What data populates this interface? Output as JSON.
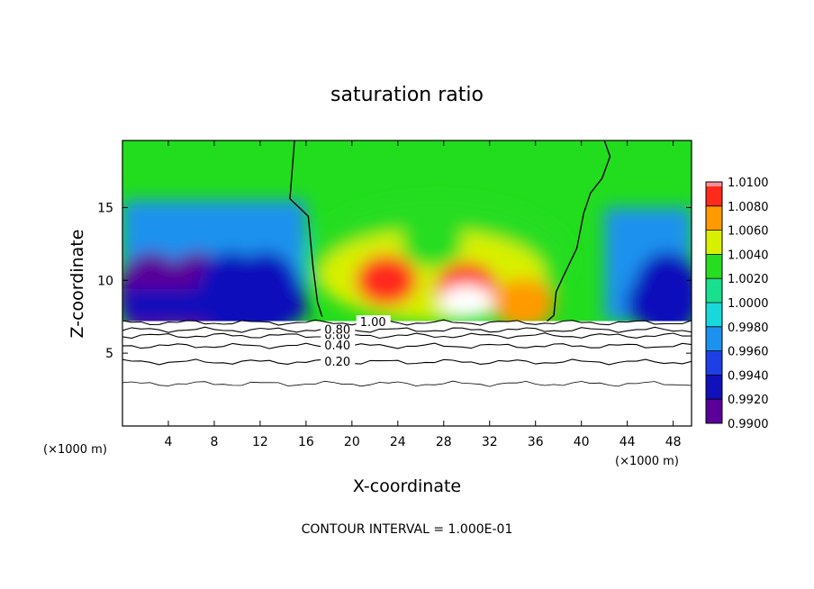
{
  "chart_data": {
    "type": "heatmap",
    "title": "saturation ratio",
    "xlabel": "X-coordinate",
    "ylabel": "Z-coordinate",
    "x_units": "(×1000 m)",
    "y_units": "(×1000 m)",
    "xlim": [
      0,
      49.6
    ],
    "ylim": [
      0,
      19.6
    ],
    "x_ticks": [
      4,
      8,
      12,
      16,
      20,
      24,
      28,
      32,
      36,
      40,
      44,
      48
    ],
    "y_ticks": [
      5,
      10,
      15
    ],
    "colorbar": {
      "levels": [
        0.99,
        0.992,
        0.994,
        0.996,
        0.998,
        1.0,
        1.002,
        1.004,
        1.006,
        1.008,
        1.01
      ],
      "labels": [
        "0.9900",
        "0.9920",
        "0.9940",
        "0.9960",
        "0.9980",
        "1.0000",
        "1.0020",
        "1.0040",
        "1.0060",
        "1.0080",
        "1.0100"
      ],
      "colors": [
        "#5a0099",
        "#1111bb",
        "#1f3fe6",
        "#1c92ee",
        "#18d8dc",
        "#19e08c",
        "#27dd22",
        "#d8f000",
        "#ff9a00",
        "#ff2a1a",
        "#ff8f9a"
      ]
    },
    "contour_lines": [
      {
        "level": 0.2,
        "label": "0.20",
        "z": 4.4
      },
      {
        "level": 0.4,
        "label": "0.40",
        "z": 5.5
      },
      {
        "level": 0.6,
        "label": "0.60",
        "z": 6.2
      },
      {
        "level": 0.8,
        "label": "0.80",
        "z": 6.6
      },
      {
        "level": 1.0,
        "label": "1.00",
        "z": 7.1
      }
    ],
    "lowest_contour_z": 2.9,
    "unit_line_x": [
      [
        15,
        19.6
      ],
      [
        14.6,
        15.6
      ],
      [
        16.2,
        14.4
      ],
      [
        16.6,
        11
      ],
      [
        17,
        8.5
      ],
      [
        17.4,
        7.5
      ]
    ],
    "unit_line_x2": [
      [
        42,
        19.6
      ],
      [
        42.5,
        18.5
      ],
      [
        41.8,
        17
      ],
      [
        40.8,
        16
      ],
      [
        40.2,
        14.6
      ],
      [
        39.6,
        12.2
      ],
      [
        38.5,
        10.4
      ],
      [
        37.8,
        9.2
      ],
      [
        37.6,
        7.6
      ],
      [
        37,
        7.2
      ]
    ],
    "warm_blobs": [
      {
        "x": 23,
        "z": 10,
        "value": 1.0085
      },
      {
        "x": 30,
        "z": 9.5,
        "value": 1.009
      },
      {
        "x": 35,
        "z": 8.4,
        "value": 1.007
      },
      {
        "x": 27,
        "z": 12.6,
        "value": 1.003
      }
    ],
    "dry_columns": [
      {
        "x": 2.5,
        "value": 0.9915
      },
      {
        "x": 6.5,
        "value": 0.9918
      },
      {
        "x": 9.5,
        "value": 0.9922
      },
      {
        "x": 12.5,
        "value": 0.9925
      },
      {
        "x": 47.5,
        "value": 0.993
      }
    ]
  },
  "footer": "CONTOUR INTERVAL = 1.000E-01"
}
